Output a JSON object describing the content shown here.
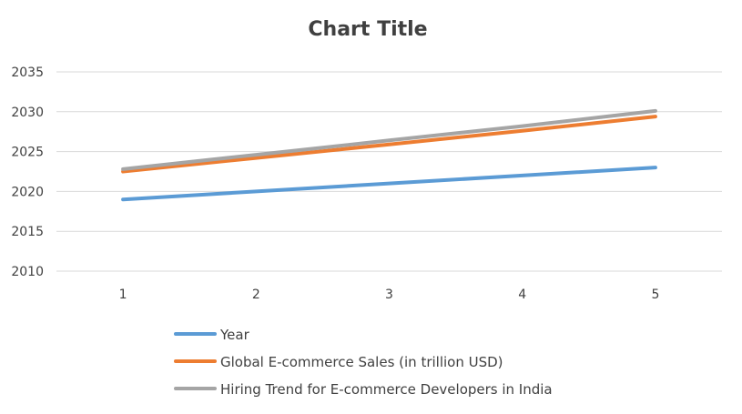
{
  "chart_data": {
    "type": "line",
    "title": "Chart Title",
    "xlabel": "",
    "ylabel": "",
    "x": [
      1,
      2,
      3,
      4,
      5
    ],
    "categories": [
      "1",
      "2",
      "3",
      "4",
      "5"
    ],
    "ylim": [
      2010,
      2035
    ],
    "yticks": [
      2010,
      2015,
      2020,
      2025,
      2030,
      2035
    ],
    "grid": true,
    "legend_position": "bottom",
    "series": [
      {
        "name": "Year",
        "color": "#5b9bd5",
        "values": [
          2019,
          2020,
          2021,
          2022,
          2023
        ]
      },
      {
        "name": "Global E-commerce Sales (in trillion USD)",
        "color": "#ed7d31",
        "values": [
          2022.5,
          2024.2,
          2025.9,
          2027.6,
          2029.4
        ]
      },
      {
        "name": "Hiring Trend for E-commerce Developers in India",
        "color": "#a5a5a5",
        "values": [
          2022.8,
          2024.6,
          2026.4,
          2028.2,
          2030.1
        ]
      }
    ]
  }
}
